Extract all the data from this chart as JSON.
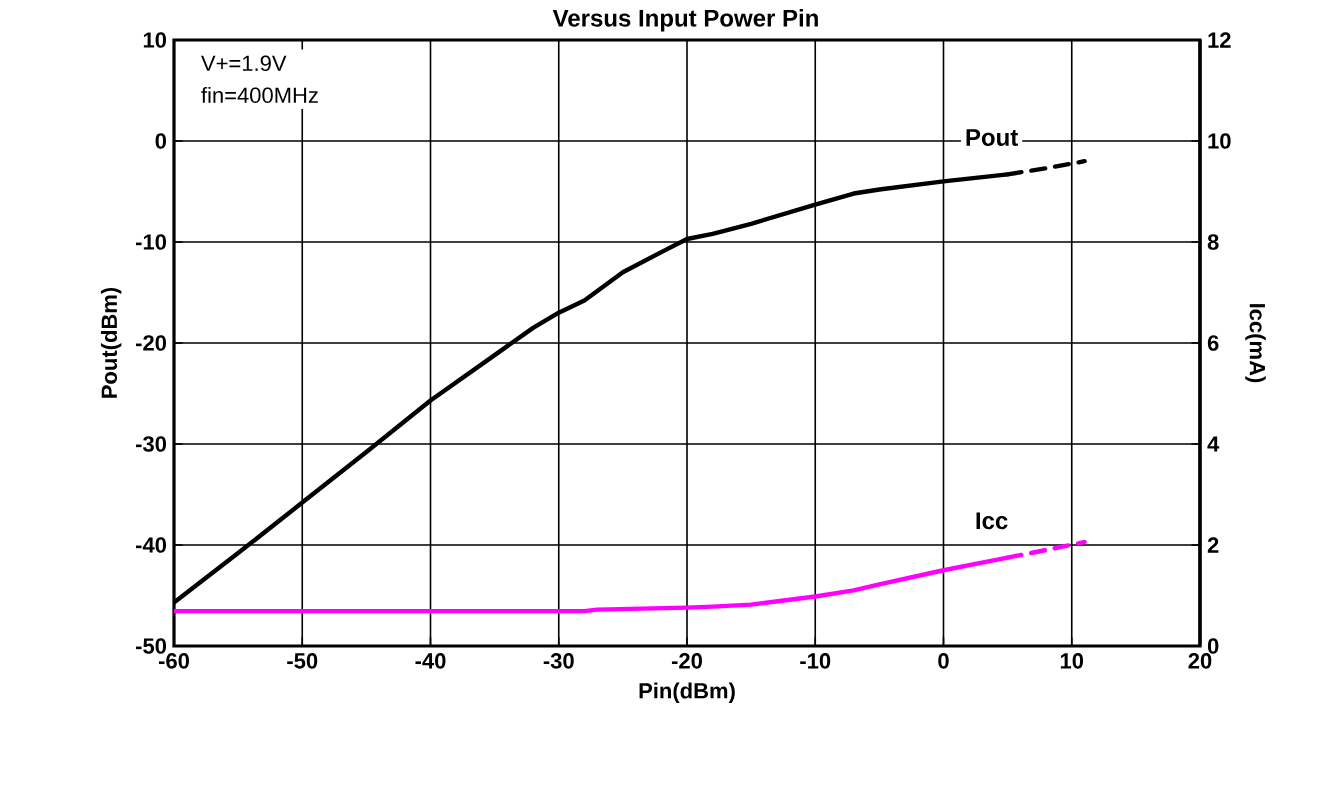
{
  "chart_data": {
    "type": "line",
    "title": "Versus Input Power Pin",
    "xlabel": "Pin(dBm)",
    "ylabel": "Pout(dBm)",
    "y2label": "Icc(mA)",
    "annotations": [
      "V+=1.9V",
      "fin=400MHz"
    ],
    "xlim": [
      -60,
      20
    ],
    "xticks": [
      -60,
      -50,
      -40,
      -30,
      -20,
      -10,
      0,
      10,
      20
    ],
    "ylim": [
      -50,
      10
    ],
    "yticks": [
      -50,
      -40,
      -30,
      -20,
      -10,
      0,
      10
    ],
    "y2lim": [
      0,
      12
    ],
    "y2ticks": [
      0,
      2,
      4,
      6,
      8,
      10,
      12
    ],
    "grid": true,
    "legend": false,
    "marker": "none",
    "line_style": "solid",
    "series": [
      {
        "name": "Pout",
        "color": "#000000",
        "x": [
          -60,
          -55,
          -50,
          -45,
          -40,
          -35,
          -32,
          -30,
          -28,
          -25,
          -22,
          -20,
          -18,
          -15,
          -10,
          -7,
          -5,
          0,
          5
        ],
        "values": [
          -45.7,
          -40.8,
          -35.8,
          -30.8,
          -25.7,
          -21.2,
          -18.5,
          -17,
          -15.8,
          -13,
          -11,
          -9.7,
          -9.2,
          -8.2,
          -6.3,
          -5.2,
          -4.8,
          -4,
          -3.3
        ]
      },
      {
        "color": "#000000",
        "line_style": "dashed",
        "x": [
          5,
          8,
          11
        ],
        "values": [
          -3.3,
          -2.7,
          -2.0
        ]
      },
      {
        "name": "Icc",
        "color": "#ff00ff",
        "axis": "y2",
        "x": [
          -60,
          -28,
          -27,
          -20,
          -18,
          -15,
          -10,
          -7,
          -5,
          0,
          3,
          5
        ],
        "values": [
          0.69,
          0.69,
          0.72,
          0.76,
          0.78,
          0.82,
          0.98,
          1.1,
          1.22,
          1.5,
          1.65,
          1.75
        ]
      },
      {
        "color": "#ff00ff",
        "axis": "y2",
        "line_style": "dashed",
        "x": [
          5,
          8,
          11
        ],
        "values": [
          1.75,
          1.9,
          2.06
        ]
      }
    ]
  }
}
